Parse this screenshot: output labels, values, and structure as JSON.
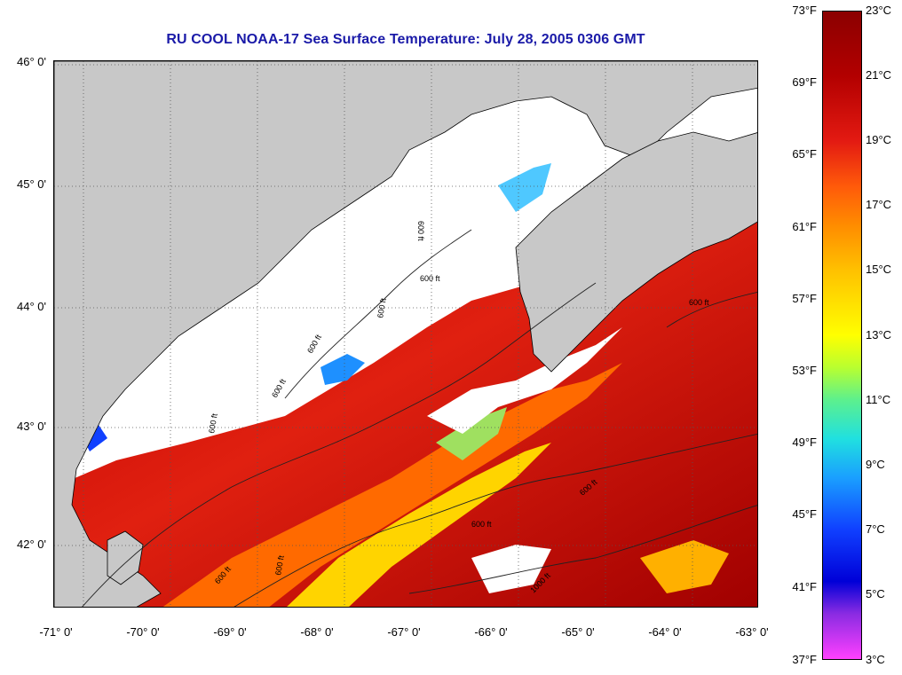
{
  "title": "RU COOL  NOAA-17  Sea Surface Temperature:  July 28, 2005 0306 GMT",
  "colors": {
    "title": "#1a1aa8",
    "land": "#c8c8c8",
    "cloud": "#ffffff",
    "sst_warm": "#a00000",
    "sst_mid": "#ff6a00",
    "sst_cool": "#ffe000",
    "sst_cold": "#1e90ff"
  },
  "map": {
    "lat_labels": [
      "46° 0'",
      "45° 0'",
      "44° 0'",
      "43° 0'",
      "42° 0'"
    ],
    "lon_labels": [
      "-71° 0'",
      "-70° 0'",
      "-69° 0'",
      "-68° 0'",
      "-67° 0'",
      "-66° 0'",
      "-65° 0'",
      "-64° 0'",
      "-63° 0'"
    ],
    "contour_labels": [
      "600 ft",
      "600 ft",
      "600 ft",
      "600 ft",
      "600 ft",
      "600 ft",
      "600 ft",
      "600 ft",
      "600 ft",
      "600 ft",
      "600 ft",
      "1000 ft"
    ]
  },
  "colorbar": {
    "f_labels": [
      "73°F",
      "69°F",
      "65°F",
      "61°F",
      "57°F",
      "53°F",
      "49°F",
      "45°F",
      "41°F",
      "37°F"
    ],
    "c_labels": [
      "23°C",
      "21°C",
      "19°C",
      "17°C",
      "15°C",
      "13°C",
      "11°C",
      "9°C",
      "7°C",
      "5°C",
      "3°C"
    ]
  }
}
